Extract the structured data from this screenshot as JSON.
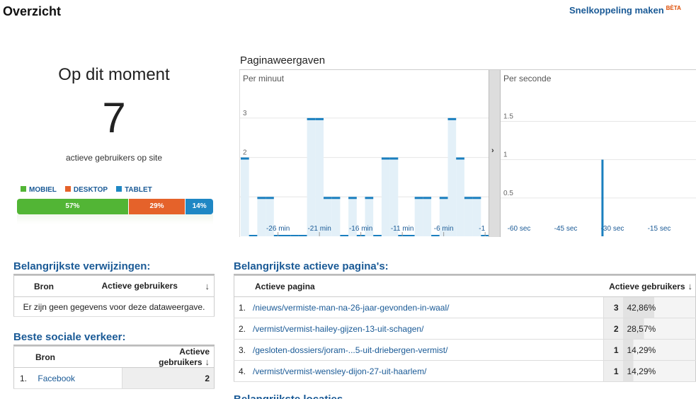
{
  "header": {
    "title": "Overzicht",
    "shortcut_label": "Snelkoppeling maken",
    "beta_label": "BÈTA"
  },
  "realtime": {
    "heading": "Op dit moment",
    "count": "7",
    "subtitle": "actieve gebruikers op site"
  },
  "devices": {
    "legend": [
      {
        "label": "MOBIEL",
        "color": "#52b535"
      },
      {
        "label": "DESKTOP",
        "color": "#e5622a"
      },
      {
        "label": "TABLET",
        "color": "#1f87c4"
      }
    ],
    "segments": [
      {
        "label": "57%",
        "value": 57,
        "color": "#52b535"
      },
      {
        "label": "29%",
        "value": 29,
        "color": "#e5622a"
      },
      {
        "label": "14%",
        "value": 14,
        "color": "#1f87c4"
      }
    ]
  },
  "pageviews": {
    "title": "Paginaweergaven",
    "per_minute_caption": "Per minuut",
    "per_second_caption": "Per seconde",
    "arrow": "›"
  },
  "chart_data": [
    {
      "type": "bar",
      "title": "Per minuut",
      "ylim": [
        0,
        3.5
      ],
      "yticks": [
        "1",
        "2",
        "3"
      ],
      "x_tick_labels": [
        "-26 min",
        "-21 min",
        "-16 min",
        "-11 min",
        "-6 min",
        "-1"
      ],
      "x_tick_at": [
        4,
        9,
        14,
        19,
        24,
        29
      ],
      "values": [
        2,
        0,
        1,
        1,
        0,
        0,
        0,
        0,
        3,
        3,
        1,
        1,
        0,
        1,
        0,
        1,
        0,
        2,
        2,
        0,
        0,
        1,
        1,
        0,
        1,
        3,
        2,
        1,
        1,
        0
      ]
    },
    {
      "type": "bar",
      "title": "Per seconde",
      "ylim": [
        0,
        1.8
      ],
      "yticks": [
        "0.5",
        "1",
        "1.5"
      ],
      "x_tick_labels": [
        "-60 sec",
        "-45 sec",
        "-30 sec",
        "-15 sec"
      ],
      "x_tick_at": [
        0,
        15,
        30,
        45
      ],
      "n": 60,
      "values": [
        {
          "x": 31,
          "y": 1
        }
      ]
    }
  ],
  "referrals": {
    "title": "Belangrijkste verwijzingen:",
    "col_source": "Bron",
    "col_users": "Actieve gebruikers",
    "empty_text": "Er zijn geen gegevens voor deze dataweergave."
  },
  "social": {
    "title": "Beste sociale verkeer:",
    "col_source": "Bron",
    "col_users": "Actieve gebruikers",
    "rows": [
      {
        "index": "1.",
        "source": "Facebook",
        "users": "2"
      }
    ]
  },
  "active_pages": {
    "title": "Belangrijkste actieve pagina's:",
    "col_page": "Actieve pagina",
    "col_users": "Actieve gebruikers",
    "rows": [
      {
        "index": "1.",
        "page": "/nieuws/vermiste-man-na-26-jaar-gevonden-in-waal/",
        "users": "3",
        "pct": "42,86%",
        "share": 0.4286
      },
      {
        "index": "2.",
        "page": "/vermist/vermist-hailey-gijzen-13-uit-schagen/",
        "users": "2",
        "pct": "28,57%",
        "share": 0.2857
      },
      {
        "index": "3.",
        "page": "/gesloten-dossiers/joram-...5-uit-driebergen-vermist/",
        "users": "1",
        "pct": "14,29%",
        "share": 0.1429
      },
      {
        "index": "4.",
        "page": "/vermist/vermist-wensley-dijon-27-uit-haarlem/",
        "users": "1",
        "pct": "14,29%",
        "share": 0.1429
      }
    ]
  },
  "next_section": {
    "title": "Belangrijkste locaties"
  }
}
